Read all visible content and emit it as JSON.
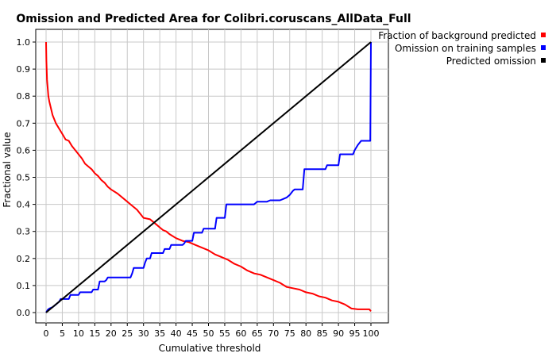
{
  "chart_data": {
    "type": "line",
    "title": "Omission and Predicted Area for Colibri.coruscans_AllData_Full",
    "xlabel": "Cumulative threshold",
    "ylabel": "Fractional value",
    "xlim": [
      0,
      100
    ],
    "ylim": [
      0,
      1
    ],
    "x_ticks": [
      "0",
      "5",
      "10",
      "15",
      "20",
      "25",
      "30",
      "35",
      "40",
      "45",
      "50",
      "55",
      "60",
      "65",
      "70",
      "75",
      "80",
      "85",
      "90",
      "95",
      "100"
    ],
    "y_ticks": [
      "0.0",
      "0.1",
      "0.2",
      "0.3",
      "0.4",
      "0.5",
      "0.6",
      "0.7",
      "0.8",
      "0.9",
      "1.0"
    ],
    "grid": true,
    "legend_position": "right",
    "series": [
      {
        "name": "Fraction of background predicted",
        "color": "#ff0000",
        "points": [
          [
            0,
            1.0
          ],
          [
            0.1,
            0.93
          ],
          [
            0.3,
            0.86
          ],
          [
            0.7,
            0.8
          ],
          [
            1,
            0.78
          ],
          [
            2,
            0.73
          ],
          [
            3,
            0.7
          ],
          [
            4,
            0.68
          ],
          [
            5,
            0.66
          ],
          [
            6,
            0.64
          ],
          [
            7,
            0.635
          ],
          [
            8,
            0.615
          ],
          [
            9,
            0.6
          ],
          [
            10,
            0.585
          ],
          [
            11,
            0.57
          ],
          [
            12,
            0.55
          ],
          [
            13,
            0.54
          ],
          [
            14,
            0.53
          ],
          [
            15,
            0.515
          ],
          [
            16,
            0.505
          ],
          [
            17,
            0.49
          ],
          [
            18,
            0.48
          ],
          [
            19,
            0.465
          ],
          [
            20,
            0.455
          ],
          [
            22,
            0.44
          ],
          [
            24,
            0.42
          ],
          [
            26,
            0.4
          ],
          [
            27,
            0.39
          ],
          [
            28,
            0.38
          ],
          [
            29,
            0.365
          ],
          [
            30,
            0.35
          ],
          [
            32,
            0.345
          ],
          [
            33,
            0.335
          ],
          [
            34,
            0.325
          ],
          [
            35,
            0.315
          ],
          [
            36,
            0.305
          ],
          [
            37,
            0.3
          ],
          [
            38,
            0.29
          ],
          [
            40,
            0.275
          ],
          [
            42,
            0.265
          ],
          [
            44,
            0.26
          ],
          [
            46,
            0.25
          ],
          [
            48,
            0.24
          ],
          [
            50,
            0.23
          ],
          [
            52,
            0.215
          ],
          [
            54,
            0.205
          ],
          [
            56,
            0.195
          ],
          [
            58,
            0.18
          ],
          [
            60,
            0.17
          ],
          [
            62,
            0.155
          ],
          [
            64,
            0.145
          ],
          [
            66,
            0.14
          ],
          [
            68,
            0.13
          ],
          [
            70,
            0.12
          ],
          [
            72,
            0.11
          ],
          [
            74,
            0.095
          ],
          [
            76,
            0.09
          ],
          [
            78,
            0.085
          ],
          [
            80,
            0.075
          ],
          [
            82,
            0.07
          ],
          [
            84,
            0.06
          ],
          [
            86,
            0.055
          ],
          [
            88,
            0.045
          ],
          [
            90,
            0.04
          ],
          [
            92,
            0.03
          ],
          [
            94,
            0.015
          ],
          [
            96,
            0.012
          ],
          [
            98,
            0.012
          ],
          [
            99.5,
            0.012
          ],
          [
            100,
            0.005
          ]
        ]
      },
      {
        "name": "Omission on training samples",
        "color": "#0000ff",
        "points": [
          [
            0,
            0.0
          ],
          [
            0.5,
            0.01
          ],
          [
            1,
            0.015
          ],
          [
            2,
            0.02
          ],
          [
            3,
            0.03
          ],
          [
            4,
            0.04
          ],
          [
            4.5,
            0.05
          ],
          [
            7,
            0.05
          ],
          [
            7.5,
            0.065
          ],
          [
            10,
            0.065
          ],
          [
            10.5,
            0.075
          ],
          [
            14,
            0.075
          ],
          [
            14.5,
            0.085
          ],
          [
            16,
            0.085
          ],
          [
            16.5,
            0.115
          ],
          [
            18,
            0.115
          ],
          [
            18.5,
            0.12
          ],
          [
            19,
            0.13
          ],
          [
            26,
            0.13
          ],
          [
            26.5,
            0.145
          ],
          [
            27,
            0.165
          ],
          [
            30,
            0.165
          ],
          [
            30.5,
            0.185
          ],
          [
            31,
            0.2
          ],
          [
            32,
            0.2
          ],
          [
            32.5,
            0.22
          ],
          [
            36,
            0.22
          ],
          [
            36.5,
            0.235
          ],
          [
            38,
            0.235
          ],
          [
            38.5,
            0.25
          ],
          [
            42,
            0.25
          ],
          [
            42.5,
            0.255
          ],
          [
            43,
            0.265
          ],
          [
            45,
            0.265
          ],
          [
            45.5,
            0.295
          ],
          [
            48,
            0.295
          ],
          [
            48.5,
            0.31
          ],
          [
            52,
            0.31
          ],
          [
            52.5,
            0.35
          ],
          [
            55,
            0.35
          ],
          [
            55.5,
            0.4
          ],
          [
            64,
            0.4
          ],
          [
            65,
            0.41
          ],
          [
            68,
            0.41
          ],
          [
            69,
            0.415
          ],
          [
            72,
            0.415
          ],
          [
            73,
            0.42
          ],
          [
            74,
            0.425
          ],
          [
            75,
            0.435
          ],
          [
            76,
            0.45
          ],
          [
            76.5,
            0.455
          ],
          [
            79,
            0.455
          ],
          [
            79.5,
            0.53
          ],
          [
            86,
            0.53
          ],
          [
            86.5,
            0.545
          ],
          [
            90,
            0.545
          ],
          [
            90.5,
            0.585
          ],
          [
            94.5,
            0.585
          ],
          [
            95,
            0.6
          ],
          [
            96,
            0.62
          ],
          [
            97,
            0.635
          ],
          [
            99.8,
            0.635
          ],
          [
            100,
            1.0
          ]
        ]
      },
      {
        "name": "Predicted omission",
        "color": "#000000",
        "points": [
          [
            0,
            0.0
          ],
          [
            100,
            1.0
          ]
        ]
      }
    ]
  }
}
